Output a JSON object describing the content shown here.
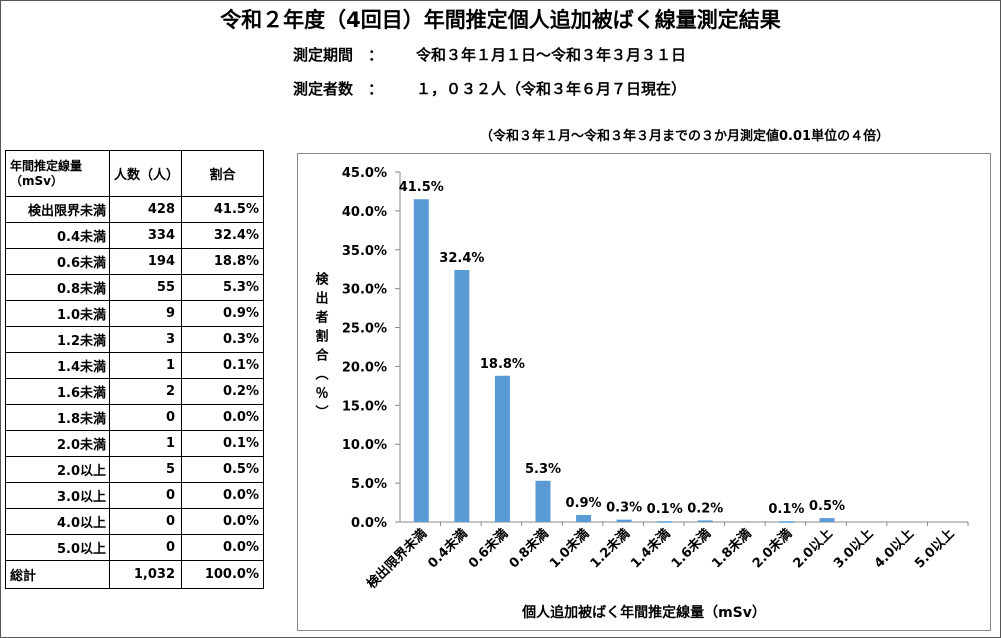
{
  "header": {
    "title": "令和２年度（4回目）年間推定個人追加被ばく線量測定結果",
    "period_label": "測定期間　：",
    "period_value": "令和３年１月１日～令和３年３月３１日",
    "count_label": "測定者数　：",
    "count_value": "１，０３２人（令和３年６月７日現在）",
    "note": "（令和３年１月～令和３年３月までの３か月測定値0.01単位の４倍）"
  },
  "table": {
    "headers": [
      "年間推定線量\n（mSv）",
      "人数（人）",
      "割合"
    ],
    "rows": [
      [
        "検出限界未満",
        "428",
        "41.5%"
      ],
      [
        "0.4未満",
        "334",
        "32.4%"
      ],
      [
        "0.6未満",
        "194",
        "18.8%"
      ],
      [
        "0.8未満",
        "55",
        "5.3%"
      ],
      [
        "1.0未満",
        "9",
        "0.9%"
      ],
      [
        "1.2未満",
        "3",
        "0.3%"
      ],
      [
        "1.4未満",
        "1",
        "0.1%"
      ],
      [
        "1.6未満",
        "2",
        "0.2%"
      ],
      [
        "1.8未満",
        "0",
        "0.0%"
      ],
      [
        "2.0未満",
        "1",
        "0.1%"
      ],
      [
        "2.0以上",
        "5",
        "0.5%"
      ],
      [
        "3.0以上",
        "0",
        "0.0%"
      ],
      [
        "4.0以上",
        "0",
        "0.0%"
      ],
      [
        "5.0以上",
        "0",
        "0.0%"
      ]
    ],
    "total": [
      "総計",
      "1,032",
      "100.0%"
    ]
  },
  "chart_data": {
    "type": "bar",
    "categories": [
      "検出限界未満",
      "0.4未満",
      "0.6未満",
      "0.8未満",
      "1.0未満",
      "1.2未満",
      "1.4未満",
      "1.6未満",
      "1.8未満",
      "2.0未満",
      "2.0以上",
      "3.0以上",
      "4.0以上",
      "5.0以上"
    ],
    "values": [
      41.5,
      32.4,
      18.8,
      5.3,
      0.9,
      0.3,
      0.1,
      0.2,
      0.0,
      0.1,
      0.5,
      0.0,
      0.0,
      0.0
    ],
    "data_labels": [
      "41.5%",
      "32.4%",
      "18.8%",
      "5.3%",
      "0.9%",
      "0.3%",
      "0.1%",
      "0.2%",
      "",
      "0.1%",
      "0.5%",
      "",
      "",
      ""
    ],
    "yticks": [
      "0.0%",
      "5.0%",
      "10.0%",
      "15.0%",
      "20.0%",
      "25.0%",
      "30.0%",
      "35.0%",
      "40.0%",
      "45.0%"
    ],
    "ylim": [
      0,
      45
    ],
    "ylabel": "検出者割合（％）",
    "xlabel": "個人追加被ばく年間推定線量（mSv）",
    "bar_color": "#5b9bd5"
  }
}
